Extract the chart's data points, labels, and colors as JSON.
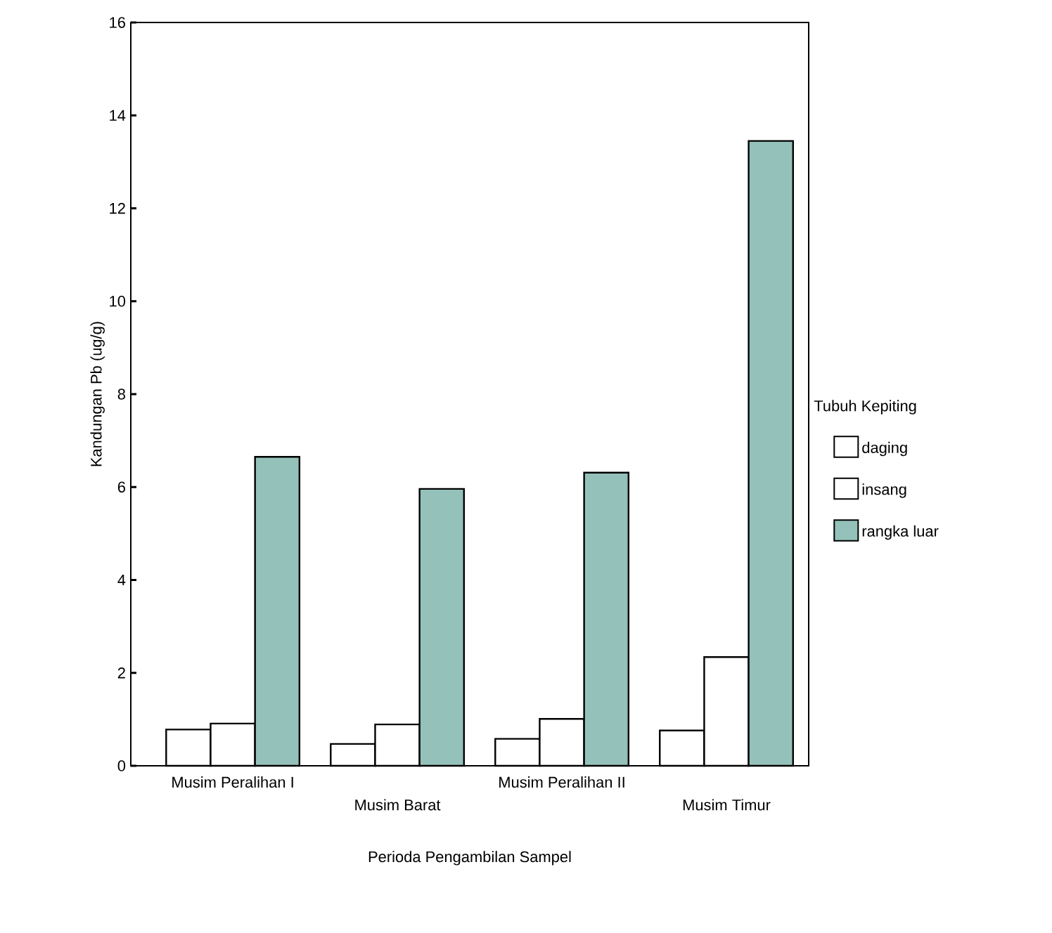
{
  "chart_data": {
    "type": "bar",
    "xlabel": "Perioda Pengambilan Sampel",
    "ylabel": "Kandungan Pb (ug/g)",
    "legend_title": "Tubuh Kepiting",
    "categories": [
      "Musim Peralihan I",
      "Musim Barat",
      "Musim Peralihan II",
      "Musim Timur"
    ],
    "series": [
      {
        "name": "daging",
        "color": "#ffffff",
        "values": [
          0.78,
          0.47,
          0.58,
          0.76
        ]
      },
      {
        "name": "insang",
        "color": "#ffffff",
        "values": [
          0.91,
          0.89,
          1.01,
          2.34
        ]
      },
      {
        "name": "rangka luar",
        "color": "#94c1b9",
        "values": [
          6.65,
          5.96,
          6.31,
          13.45
        ]
      }
    ],
    "ylim": [
      0,
      16
    ],
    "yticks": [
      0,
      2,
      4,
      6,
      8,
      10,
      12,
      14,
      16
    ],
    "legend": "right"
  }
}
